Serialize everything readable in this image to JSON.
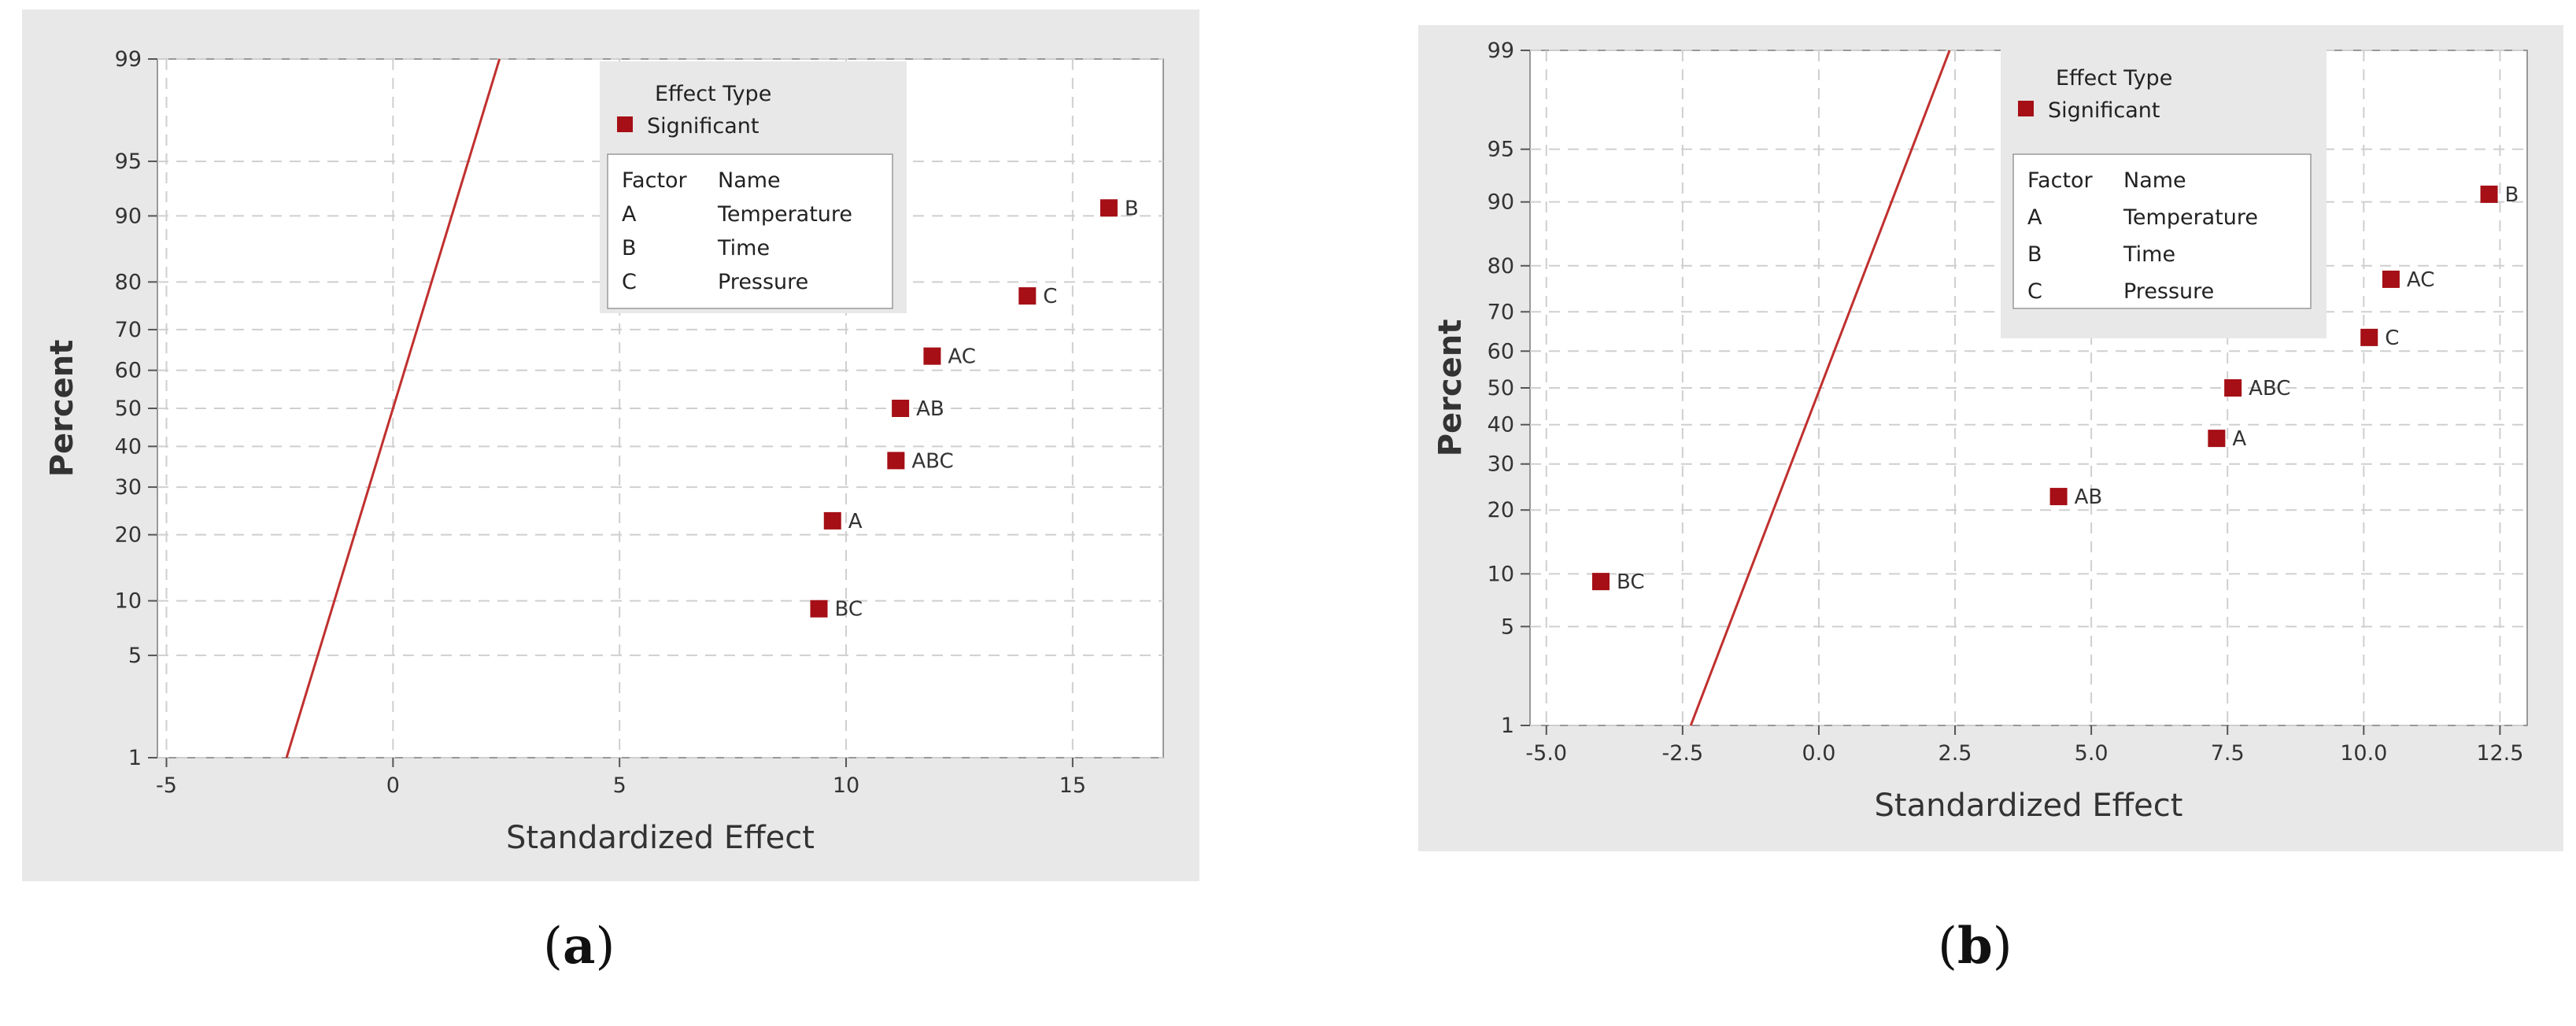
{
  "chart_data": [
    {
      "type": "scatter",
      "panel_label": "a",
      "xlabel": "Standardized Effect",
      "ylabel": "Percent",
      "xlim": [
        -5.2,
        17
      ],
      "x_ticks": [
        -5,
        0,
        5,
        10,
        15
      ],
      "x_tick_labels": [
        "-5",
        "0",
        "5",
        "10",
        "15"
      ],
      "y_scale": "normal-probability",
      "y_ticks": [
        1,
        5,
        10,
        20,
        30,
        40,
        50,
        60,
        70,
        80,
        90,
        95,
        99
      ],
      "grid": true,
      "reference_line": {
        "x": [
          -2.35,
          2.35
        ],
        "y": [
          1,
          99
        ]
      },
      "legend": {
        "title": "Effect Type",
        "entries": [
          "Significant"
        ],
        "factor_header": "Factor",
        "name_header": "Name",
        "factors": [
          {
            "factor": "A",
            "name": "Temperature"
          },
          {
            "factor": "B",
            "name": "Time"
          },
          {
            "factor": "C",
            "name": "Pressure"
          }
        ],
        "placement": "top-right"
      },
      "points": [
        {
          "label": "B",
          "x": 15.8,
          "y": 90.9
        },
        {
          "label": "C",
          "x": 14.0,
          "y": 77.3
        },
        {
          "label": "AC",
          "x": 11.9,
          "y": 63.6
        },
        {
          "label": "AB",
          "x": 11.2,
          "y": 50.0
        },
        {
          "label": "ABC",
          "x": 11.1,
          "y": 36.4
        },
        {
          "label": "A",
          "x": 9.7,
          "y": 22.7
        },
        {
          "label": "BC",
          "x": 9.4,
          "y": 9.1
        }
      ],
      "colors": {
        "point": "#a50f15",
        "line": "#c0302e",
        "plot_bg": "#ffffff",
        "frame_bg": "#e8e8e8"
      }
    },
    {
      "type": "scatter",
      "panel_label": "b",
      "xlabel": "Standardized Effect",
      "ylabel": "Percent",
      "xlim": [
        -5.3,
        13.0
      ],
      "x_ticks": [
        -5,
        -2.5,
        0,
        2.5,
        5,
        7.5,
        10,
        12.5
      ],
      "x_tick_labels": [
        "-5.0",
        "-2.5",
        "0.0",
        "2.5",
        "5.0",
        "7.5",
        "10.0",
        "12.5"
      ],
      "y_scale": "normal-probability",
      "y_ticks": [
        1,
        5,
        10,
        20,
        30,
        40,
        50,
        60,
        70,
        80,
        90,
        95,
        99
      ],
      "grid": true,
      "reference_line": {
        "x": [
          -2.35,
          2.4
        ],
        "y": [
          1,
          99
        ]
      },
      "legend": {
        "title": "Effect Type",
        "entries": [
          "Significant"
        ],
        "factor_header": "Factor",
        "name_header": "Name",
        "factors": [
          {
            "factor": "A",
            "name": "Temperature"
          },
          {
            "factor": "B",
            "name": "Time"
          },
          {
            "factor": "C",
            "name": "Pressure"
          }
        ],
        "placement": "top-right"
      },
      "points": [
        {
          "label": "B",
          "x": 12.3,
          "y": 90.9
        },
        {
          "label": "AC",
          "x": 10.5,
          "y": 77.3
        },
        {
          "label": "C",
          "x": 10.1,
          "y": 63.6
        },
        {
          "label": "ABC",
          "x": 7.6,
          "y": 50.0
        },
        {
          "label": "A",
          "x": 7.3,
          "y": 36.4
        },
        {
          "label": "AB",
          "x": 4.4,
          "y": 22.7
        },
        {
          "label": "BC",
          "x": -4.0,
          "y": 9.1
        }
      ],
      "colors": {
        "point": "#a50f15",
        "line": "#c0302e",
        "plot_bg": "#ffffff",
        "frame_bg": "#e8e8e8"
      }
    }
  ]
}
